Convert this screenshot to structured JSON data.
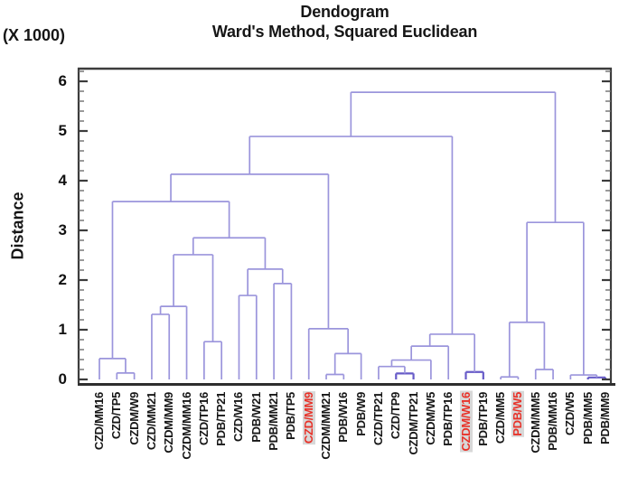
{
  "chart_data": {
    "type": "dendrogram",
    "title": "Dendogram",
    "subtitle": "Ward's Method, Squared Euclidean",
    "ylabel": "Distance",
    "y_unit_label": "(X 1000)",
    "y_ticks": [
      0,
      1,
      2,
      3,
      4,
      5,
      6
    ],
    "minor_tick_step": 0.2,
    "ylim": [
      0,
      6.27
    ],
    "grid": false,
    "legend": "none",
    "leaves": [
      "CZD/MM16",
      "CZD/TP5",
      "CZDM/W9",
      "CZD/MM21",
      "CZDM/MM9",
      "CZDM/MM16",
      "CZD/TP16",
      "PDB/TP21",
      "CZD/W16",
      "PDB/W21",
      "PDB/MM21",
      "PDB/TP5",
      "CZD/MM9",
      "CZDM/MM21",
      "PDB/W16",
      "PDB/W9",
      "CZD/TP21",
      "CZD/TP9",
      "CZDM/TP21",
      "CZDM/W5",
      "PDB/TP16",
      "CZDM/W16",
      "PDB/TP19",
      "CZD/MM5",
      "PDB/W5",
      "CZDM/MM5",
      "PDB/MM16",
      "CZD/W5",
      "PDB/MM5",
      "PDB/MM9"
    ],
    "highlighted_leaves": [
      "CZD/MM9",
      "CZDM/W16",
      "PDB/W5"
    ],
    "merges": [
      [
        "L2",
        "L3",
        0.13
      ],
      [
        "L1",
        "N1",
        0.42
      ],
      [
        "L4",
        "L5",
        1.31
      ],
      [
        "N3",
        "L6",
        1.47
      ],
      [
        "L7",
        "L8",
        0.76
      ],
      [
        "N4",
        "N5",
        2.51
      ],
      [
        "L9",
        "L10",
        1.69
      ],
      [
        "L11",
        "L12",
        1.93
      ],
      [
        "N7",
        "N8",
        2.22
      ],
      [
        "N6",
        "N9",
        2.85
      ],
      [
        "N2",
        "N10",
        3.58
      ],
      [
        "L14",
        "L15",
        0.1
      ],
      [
        "N12",
        "L16",
        0.52
      ],
      [
        "L13",
        "N13",
        1.02
      ],
      [
        "N11",
        "N14",
        4.13
      ],
      [
        "L18",
        "L19",
        0.12,
        "dark"
      ],
      [
        "L17",
        "N16",
        0.26
      ],
      [
        "N17",
        "L20",
        0.39
      ],
      [
        "N18",
        "L21",
        0.67
      ],
      [
        "L22",
        "L23",
        0.15,
        "dark"
      ],
      [
        "N19",
        "N20",
        0.91
      ],
      [
        "N15",
        "N21",
        4.89
      ],
      [
        "L24",
        "L25",
        0.05
      ],
      [
        "L26",
        "L27",
        0.2
      ],
      [
        "N23",
        "N24",
        1.15
      ],
      [
        "L29",
        "L30",
        0.04,
        "dark"
      ],
      [
        "L28",
        "N26",
        0.09
      ],
      [
        "N25",
        "N27",
        3.16
      ],
      [
        "N22",
        "N28",
        5.78
      ]
    ],
    "colors": {
      "line": "#9b95dc",
      "line_dark": "#675bc8",
      "frame": "#3c3c3c",
      "tick": "#3c3c3c",
      "minor_tick": "#6e6e6e",
      "leaf_label": "#161616",
      "highlight_text": "#e8332a",
      "highlight_bg": "#d8d8d8"
    }
  }
}
